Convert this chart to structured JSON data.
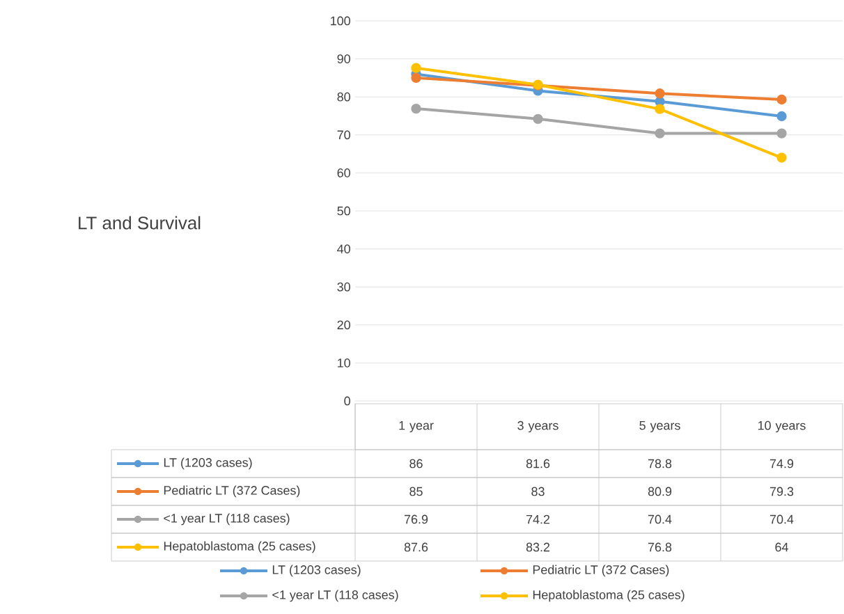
{
  "chart_data": {
    "type": "line",
    "title": "LT and Survival",
    "categories": [
      "1 year",
      "3 years",
      "5 years",
      "10 years"
    ],
    "series": [
      {
        "name": "LT (1203 cases)",
        "color": "#5b9bd5",
        "values": [
          86,
          81.6,
          78.8,
          74.9
        ]
      },
      {
        "name": "Pediatric  LT (372 Cases)",
        "color": "#ed7d31",
        "values": [
          85,
          83,
          80.9,
          79.3
        ]
      },
      {
        "name": "<1 year LT (118 cases)",
        "color": "#a5a5a5",
        "values": [
          76.9,
          74.2,
          70.4,
          70.4
        ]
      },
      {
        "name": "Hepatoblastoma (25 cases)",
        "color": "#ffc000",
        "values": [
          87.6,
          83.2,
          76.8,
          64
        ]
      }
    ],
    "ylim": [
      0,
      100
    ],
    "yticks": [
      0,
      10,
      20,
      30,
      40,
      50,
      60,
      70,
      80,
      90,
      100
    ],
    "grid": "y",
    "legend": "bottom",
    "marker": "circle",
    "line_style": "solid",
    "data_labels": true
  }
}
